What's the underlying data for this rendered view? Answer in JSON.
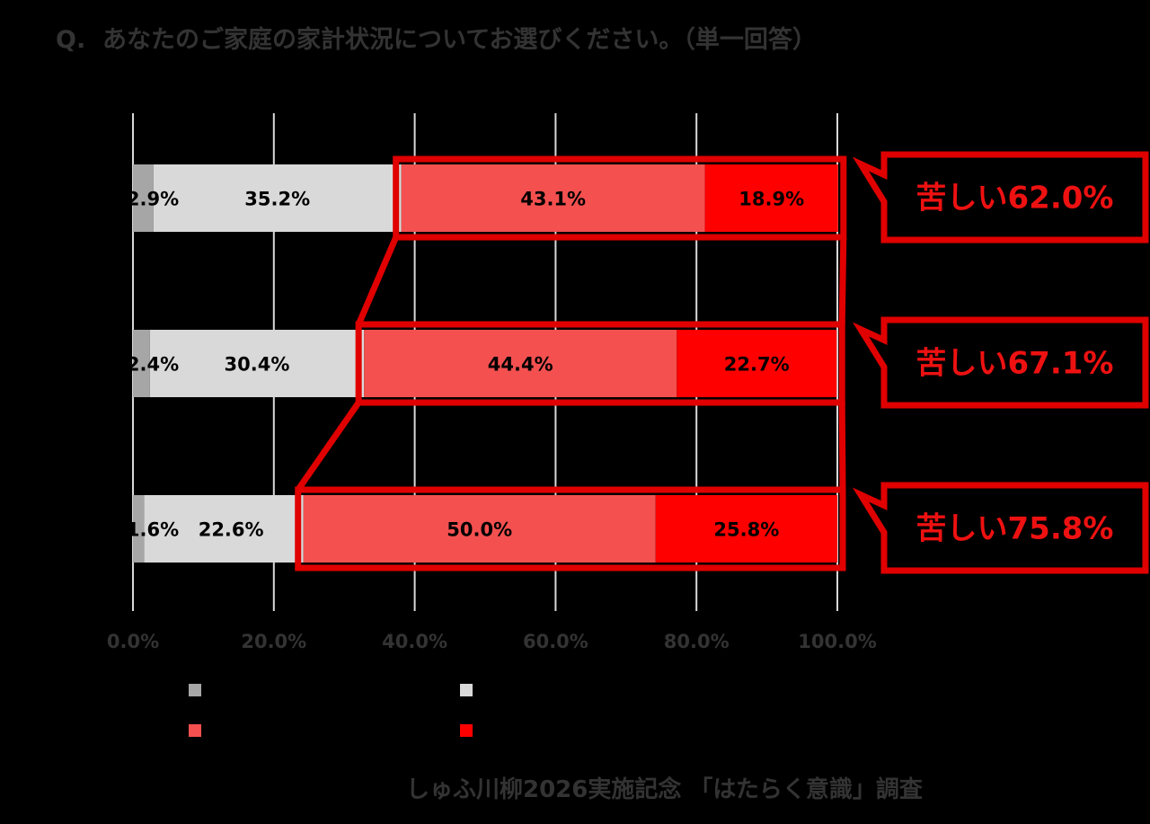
{
  "question": "Q.  あなたのご家庭の家計状況についてお選びください。（単一回答）",
  "footer": "しゅふ川柳2026実施記念 「はたらく意識」調査",
  "colors": {
    "background": "#000000",
    "very_easy": "#a6a6a6",
    "somewhat_easy": "#d9d9d9",
    "somewhat_hard": "#f45050",
    "very_hard": "#ff0000",
    "highlight": "#e00000",
    "gridline": "#d9d9d9",
    "muted_text": "#333333"
  },
  "chart_data": {
    "type": "bar",
    "orientation": "horizontal",
    "stacked": true,
    "percent_stacked": true,
    "xlim": [
      0,
      100
    ],
    "x_ticks": [
      "0.0%",
      "20.0%",
      "40.0%",
      "60.0%",
      "80.0%",
      "100.0%"
    ],
    "grid": true,
    "legend_position": "bottom",
    "row_labels": [
      "",
      "",
      ""
    ],
    "series": [
      {
        "values": [
          2.9,
          2.4,
          1.6
        ],
        "labels": [
          "2.9%",
          "2.4%",
          "1.6%"
        ]
      },
      {
        "values": [
          35.2,
          30.4,
          22.6
        ],
        "labels": [
          "35.2%",
          "30.4%",
          "22.6%"
        ]
      },
      {
        "values": [
          43.1,
          44.4,
          50.0
        ],
        "labels": [
          "43.1%",
          "44.4%",
          "50.0%"
        ]
      },
      {
        "values": [
          18.9,
          22.7,
          25.8
        ],
        "labels": [
          "18.9%",
          "22.7%",
          "25.8%"
        ]
      }
    ],
    "callouts": [
      "苦しい62.0%",
      "苦しい67.1%",
      "苦しい75.8%"
    ]
  }
}
